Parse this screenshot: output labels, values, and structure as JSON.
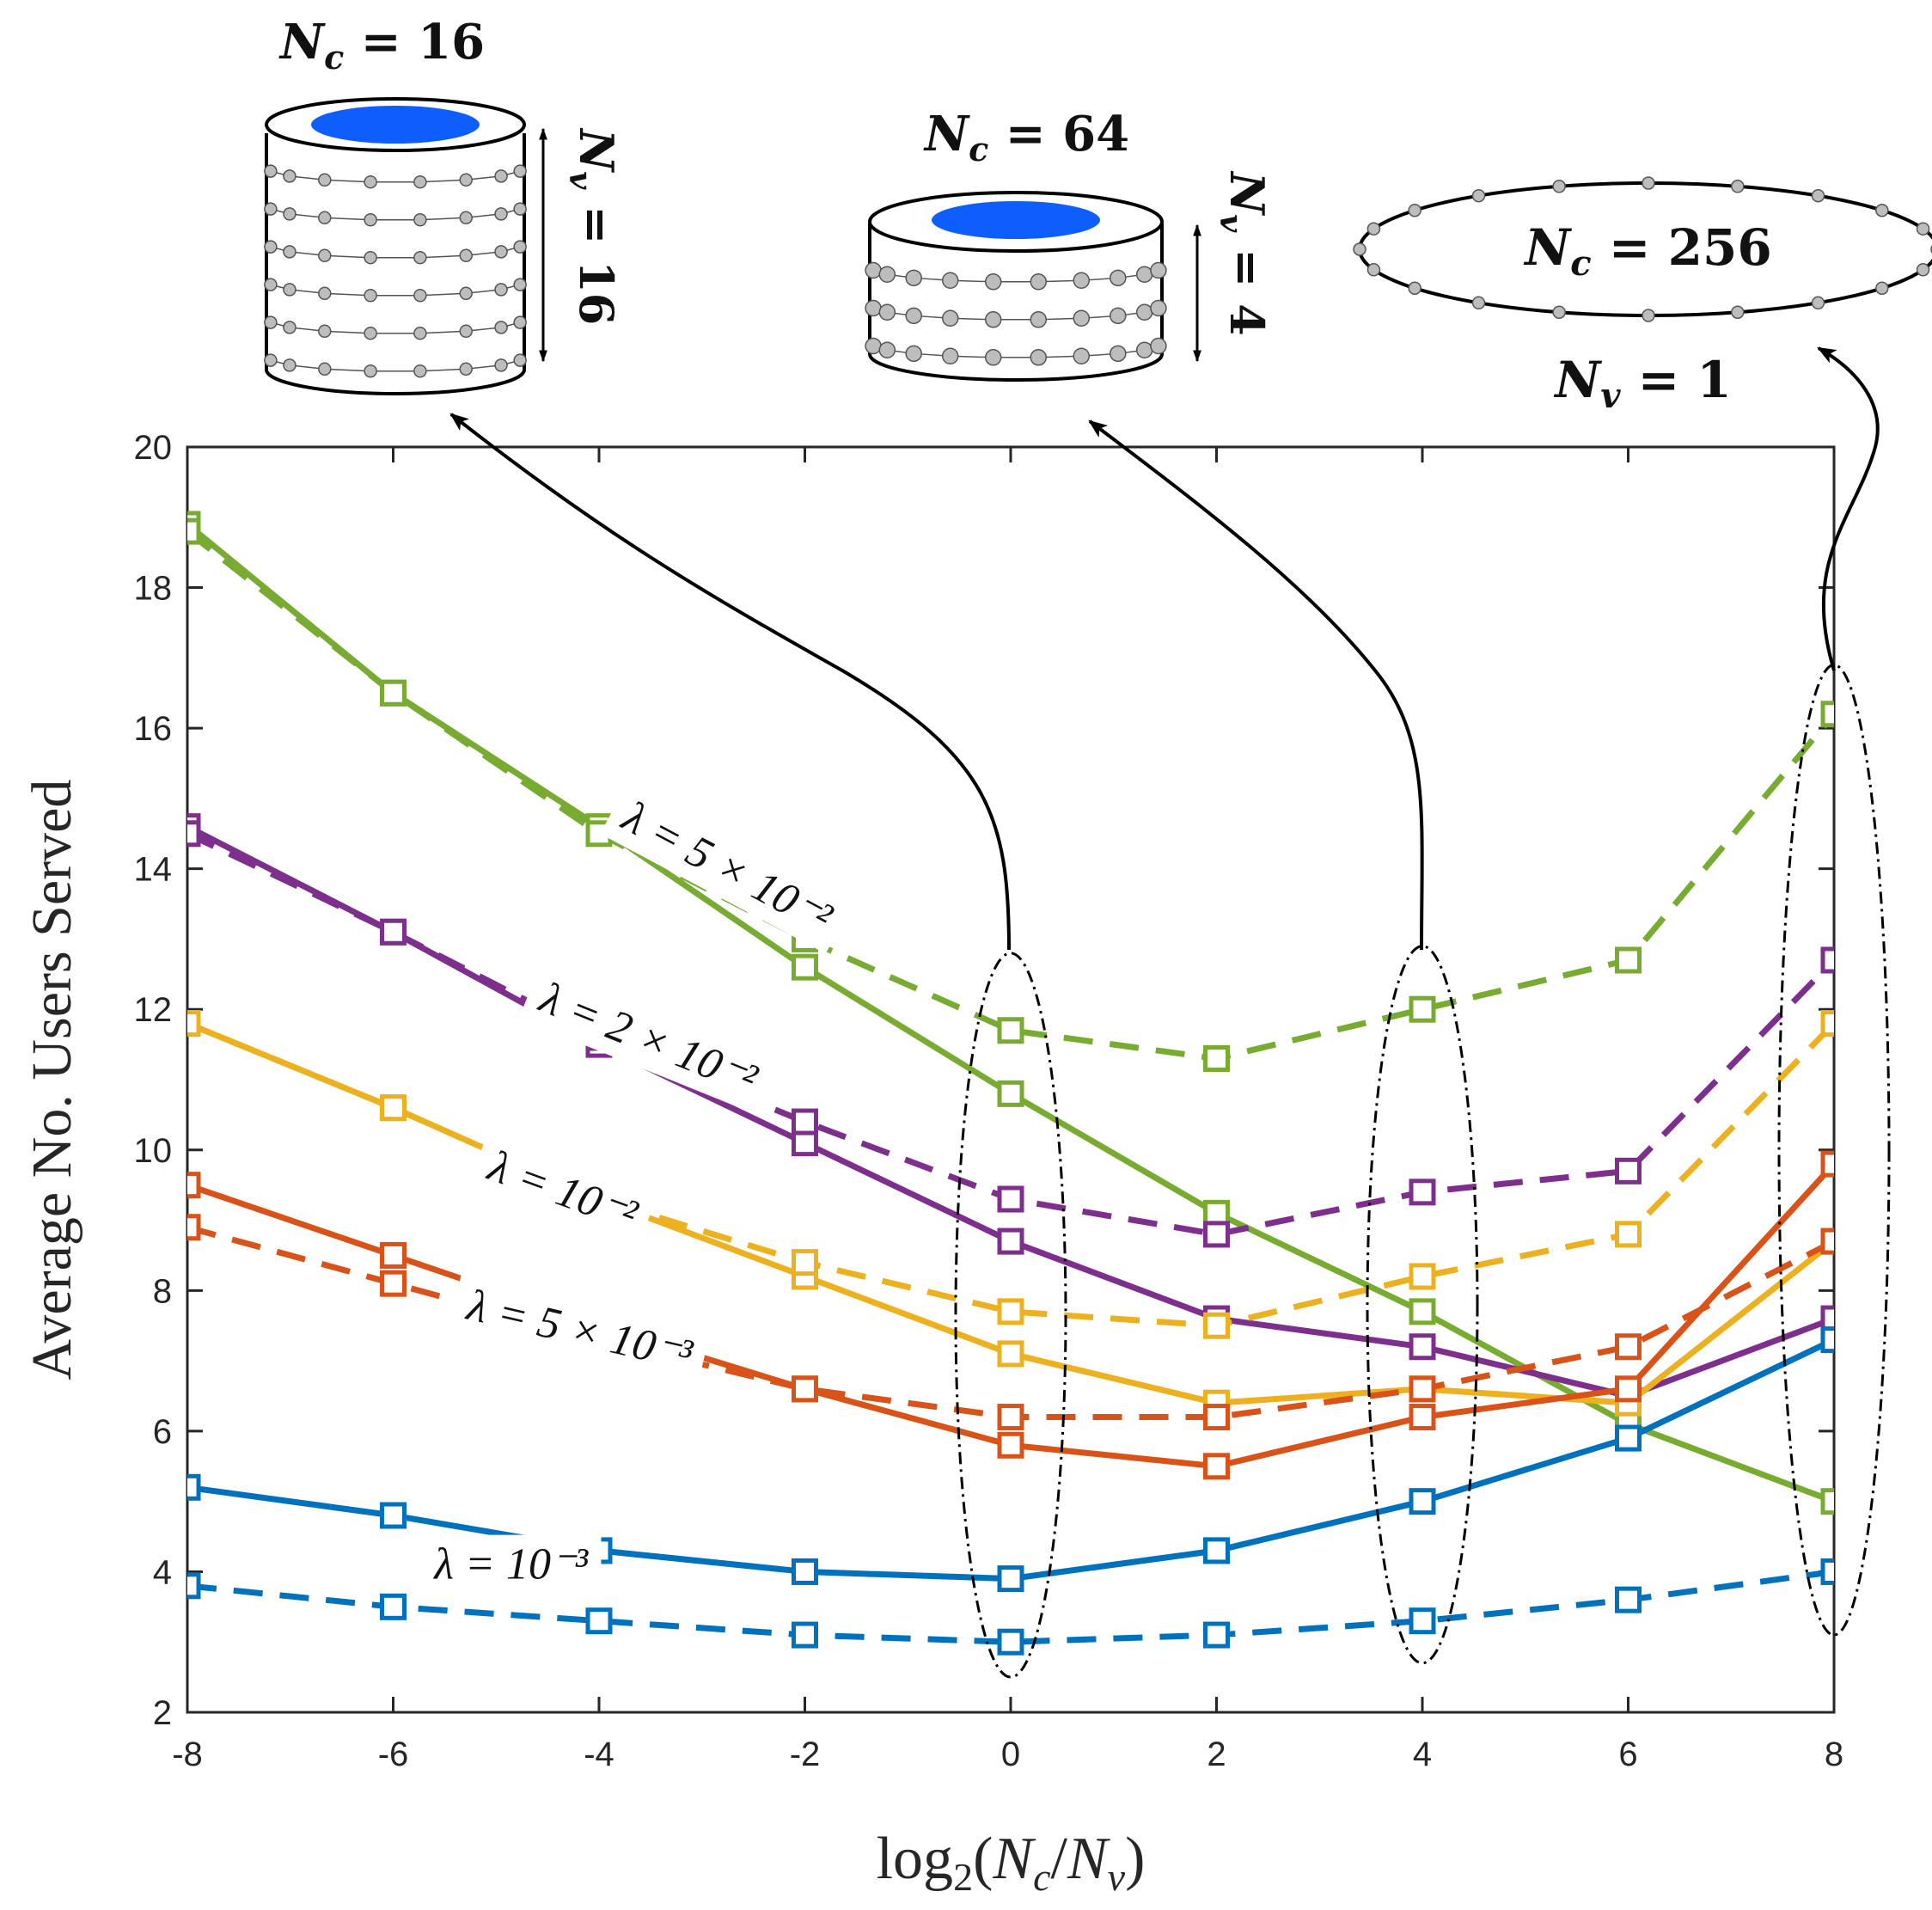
{
  "chart_data": {
    "type": "line",
    "xlabel": "log2(Nc/Nv)",
    "ylabel": "Average No. Users Served",
    "xlim": [
      -8,
      8
    ],
    "ylim": [
      2,
      20
    ],
    "xticks": [
      "-8",
      "-6",
      "-4",
      "-2",
      "0",
      "2",
      "4",
      "6",
      "8"
    ],
    "yticks": [
      "2",
      "4",
      "6",
      "8",
      "10",
      "12",
      "14",
      "16",
      "18",
      "20"
    ],
    "grid": false,
    "x": [
      -8,
      -6,
      -4,
      -2,
      0,
      2,
      4,
      6,
      8
    ],
    "colors": {
      "green": "#77ac30",
      "purple": "#7e2f8e",
      "yellow": "#edb120",
      "orange": "#d95319",
      "blue": "#0072bd"
    },
    "series": [
      {
        "color": "green",
        "style": "solid",
        "values": [
          18.9,
          16.5,
          14.6,
          12.6,
          10.8,
          9.1,
          7.7,
          6.1,
          5.0
        ]
      },
      {
        "color": "green",
        "style": "dashed",
        "values": [
          18.8,
          16.5,
          14.5,
          13.0,
          11.7,
          11.3,
          12.0,
          12.7,
          16.2
        ]
      },
      {
        "color": "purple",
        "style": "solid",
        "values": [
          14.6,
          13.1,
          11.5,
          10.1,
          8.7,
          7.6,
          7.2,
          6.5,
          7.6
        ]
      },
      {
        "color": "purple",
        "style": "dashed",
        "values": [
          14.5,
          13.1,
          11.6,
          10.4,
          9.3,
          8.8,
          9.4,
          9.7,
          12.7
        ]
      },
      {
        "color": "yellow",
        "style": "solid",
        "values": [
          11.8,
          10.6,
          9.3,
          8.2,
          7.1,
          6.4,
          6.6,
          6.4,
          8.7
        ]
      },
      {
        "color": "yellow",
        "style": "dashed",
        "values": [
          11.8,
          10.6,
          9.3,
          8.4,
          7.7,
          7.5,
          8.2,
          8.8,
          11.8
        ]
      },
      {
        "color": "orange",
        "style": "solid",
        "values": [
          9.5,
          8.5,
          7.5,
          6.6,
          5.8,
          5.5,
          6.2,
          6.6,
          9.8
        ]
      },
      {
        "color": "orange",
        "style": "dashed",
        "values": [
          8.9,
          8.1,
          7.3,
          6.6,
          6.2,
          6.2,
          6.6,
          7.2,
          8.7
        ]
      },
      {
        "color": "blue",
        "style": "solid",
        "values": [
          5.2,
          4.8,
          4.3,
          4.0,
          3.9,
          4.3,
          5.0,
          5.9,
          7.3
        ]
      },
      {
        "color": "blue",
        "style": "dashed",
        "values": [
          3.8,
          3.5,
          3.3,
          3.1,
          3.0,
          3.1,
          3.3,
          3.6,
          4.0
        ]
      }
    ],
    "annotations": [
      {
        "id": "lam1",
        "text": "λ = 5 × 10⁻²",
        "x": -3.8,
        "y": 14.6,
        "angle": 28
      },
      {
        "id": "lam2",
        "text": "λ = 2 × 10⁻²",
        "x": -4.6,
        "y": 12.0,
        "angle": 22
      },
      {
        "id": "lam3",
        "text": "λ = 10⁻²",
        "x": -5.1,
        "y": 9.6,
        "angle": 20
      },
      {
        "id": "lam4",
        "text": "λ = 5 × 10⁻³",
        "x": -5.3,
        "y": 7.6,
        "angle": 13
      },
      {
        "id": "lam5",
        "text": "λ = 10⁻³",
        "x": -5.6,
        "y": 3.9,
        "angle": 0
      }
    ],
    "insets": [
      {
        "id": "cyl16",
        "nc_label": "Nc = 16",
        "nv_label": "Nv = 16"
      },
      {
        "id": "cyl64",
        "nc_label": "Nc = 64",
        "nv_label": "Nv = 4"
      },
      {
        "id": "ring256",
        "nc_label": "Nc = 256",
        "nv_label": "Nv = 1"
      }
    ]
  }
}
